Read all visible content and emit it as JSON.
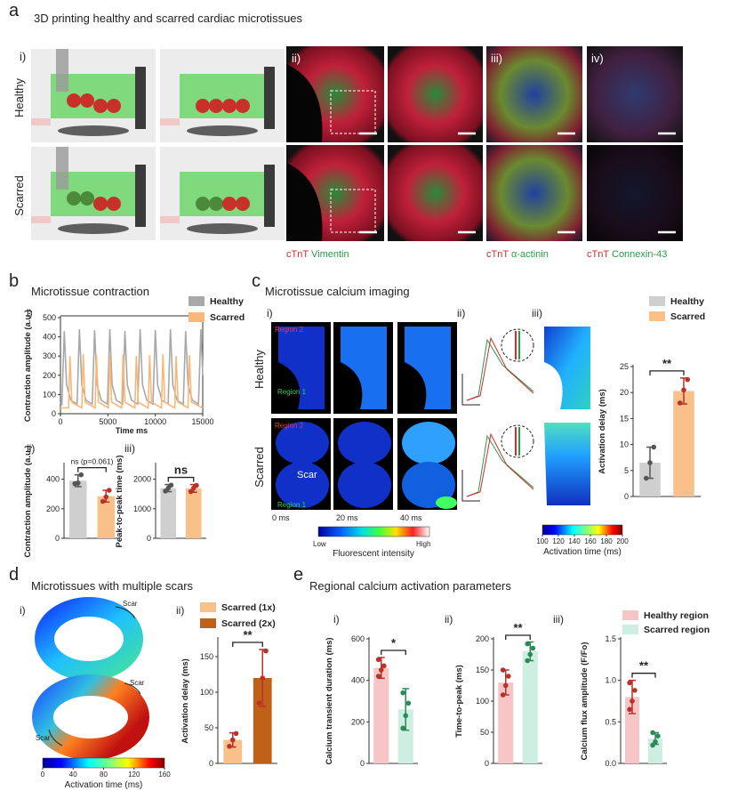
{
  "figure": {
    "panels": [
      {
        "label": "a",
        "title": "3D printing healthy and scarred cardiac microtissues",
        "sublabels": [
          "i)",
          "ii)",
          "iii)",
          "iv)"
        ],
        "rows": [
          "Healthy",
          "Scarred"
        ],
        "stains": [
          [
            "cTnT",
            "Vimentin"
          ],
          [
            "cTnT",
            "α-actinin"
          ],
          [
            "cTnT",
            "Connexin-43"
          ]
        ]
      },
      {
        "label": "b",
        "title": "Microtissue contraction",
        "sublabels": [
          "i)",
          "ii)",
          "iii)"
        ]
      },
      {
        "label": "c",
        "title": "Microtissue calcium imaging",
        "sublabels": [
          "i)",
          "ii)",
          "iii)"
        ],
        "rows": [
          "Healthy",
          "Scarred"
        ],
        "regions": [
          "Region 2",
          "Region 1"
        ],
        "scar": "Scar",
        "times": [
          "0 ms",
          "20 ms",
          "40 ms"
        ],
        "intensity_bar": {
          "low": "Low",
          "high": "High",
          "label": "Fluorescent intensity"
        },
        "activation_bar": {
          "ticks": [
            100,
            120,
            140,
            160,
            180,
            200
          ],
          "label": "Activation time (ms)"
        }
      },
      {
        "label": "d",
        "title": "Microtissues with multiple scars",
        "sublabels": [
          "i)",
          "ii)"
        ],
        "scar": "Scar",
        "activation_bar": {
          "ticks": [
            0,
            40,
            80,
            120,
            160
          ],
          "label": "Activation time (ms)"
        }
      },
      {
        "label": "e",
        "title": "Regional calcium activation parameters",
        "sublabels": [
          "i)",
          "ii)",
          "iii)"
        ]
      }
    ]
  },
  "chart_data": [
    {
      "type": "line",
      "xlabel": "Time ms",
      "ylabel": "Contraction amplitude (a.u.)",
      "xlim": [
        0,
        15000
      ],
      "xticks": [
        0,
        5000,
        10000,
        15000
      ],
      "ylim": [
        0,
        500
      ],
      "yticks": [
        0,
        100,
        200,
        300,
        400,
        500
      ],
      "series": [
        {
          "name": "Healthy",
          "color": "#a8a8a8",
          "x": [
            0,
            150,
            400,
            650,
            1100,
            1750,
            2000,
            2250,
            2700,
            3350,
            3600,
            3850,
            4300,
            4950,
            5200,
            5450,
            5900,
            6550,
            6800,
            7050,
            7500,
            8150,
            8400,
            8650,
            9100,
            9750,
            10000,
            10250,
            10700,
            11350,
            11600,
            11850,
            12300,
            12950,
            13200,
            13450,
            13900,
            14550,
            14800,
            15000
          ],
          "values": [
            60,
            50,
            430,
            150,
            70,
            50,
            440,
            150,
            70,
            50,
            435,
            150,
            70,
            50,
            440,
            150,
            70,
            50,
            430,
            150,
            70,
            50,
            440,
            150,
            70,
            50,
            435,
            150,
            70,
            50,
            440,
            150,
            70,
            50,
            430,
            150,
            70,
            50,
            440,
            200
          ]
        },
        {
          "name": "Scarred",
          "color": "#f9b878",
          "x": [
            0,
            850,
            1000,
            1200,
            2250,
            2400,
            2600,
            3650,
            3800,
            4000,
            5050,
            5200,
            5400,
            6450,
            6600,
            6800,
            7850,
            8000,
            8200,
            9250,
            9400,
            9600,
            10650,
            10800,
            11000,
            12050,
            12200,
            12400,
            13450,
            13600,
            13800,
            15000
          ],
          "values": [
            30,
            30,
            300,
            60,
            30,
            310,
            60,
            30,
            305,
            60,
            30,
            300,
            60,
            30,
            310,
            60,
            30,
            300,
            60,
            30,
            305,
            60,
            30,
            310,
            60,
            30,
            300,
            60,
            30,
            305,
            60,
            30
          ]
        }
      ]
    },
    {
      "type": "bar",
      "ylabel": "Contraction amplitude (a.u.)",
      "ylim": [
        0,
        500
      ],
      "yticks": [
        0,
        200,
        400
      ],
      "annotation": "ns (p=0.061)",
      "series": [
        {
          "color": "#cfcfcf",
          "point_color": "#555555",
          "values": [
            390
          ],
          "errors": [
            40
          ],
          "points": [
            370,
            375,
            430
          ]
        },
        {
          "color": "#f9c08a",
          "point_color": "#b8322a",
          "values": [
            285
          ],
          "errors": [
            40
          ],
          "points": [
            250,
            280,
            325
          ]
        }
      ]
    },
    {
      "type": "bar",
      "ylabel": "Peak-to-peak time (ms)",
      "ylim": [
        0,
        2500
      ],
      "yticks": [
        0,
        1000,
        2000
      ],
      "annotation": "ns",
      "series": [
        {
          "color": "#cfcfcf",
          "point_color": "#555555",
          "values": [
            1700
          ],
          "errors": [
            120
          ],
          "points": [
            1600,
            1700,
            1800
          ]
        },
        {
          "color": "#f9c08a",
          "point_color": "#b8322a",
          "values": [
            1690
          ],
          "errors": [
            130
          ],
          "points": [
            1580,
            1700,
            1790
          ]
        }
      ]
    },
    {
      "type": "bar",
      "ylabel": "Activation delay (ms)",
      "ylim": [
        0,
        25
      ],
      "yticks": [
        0,
        5,
        10,
        15,
        20,
        25
      ],
      "annotation": "**",
      "series": [
        {
          "name": "Healthy",
          "color": "#cfcfcf",
          "point_color": "#555555",
          "values": [
            6.5
          ],
          "errors": [
            3
          ],
          "points": [
            3.5,
            6.5,
            9.5
          ]
        },
        {
          "name": "Scarred",
          "color": "#f9c08a",
          "point_color": "#b8322a",
          "values": [
            20.3
          ],
          "errors": [
            2.5
          ],
          "points": [
            18,
            20.5,
            22.5
          ]
        }
      ]
    },
    {
      "type": "bar",
      "ylabel": "Activation delay (ms)",
      "ylim": [
        0,
        175
      ],
      "yticks": [
        0,
        50,
        100,
        150
      ],
      "annotation": "**",
      "series": [
        {
          "name": "Scarred (1x)",
          "color": "#f9c08a",
          "point_color": "#b8322a",
          "values": [
            33
          ],
          "errors": [
            10
          ],
          "points": [
            24,
            33,
            42
          ]
        },
        {
          "name": "Scarred (2x)",
          "color": "#c0611a",
          "point_color": "#b8322a",
          "values": [
            120
          ],
          "errors": [
            40
          ],
          "points": [
            85,
            120,
            158
          ]
        }
      ]
    },
    {
      "type": "bar",
      "ylabel": "Calcium transient duration (ms)",
      "ylim": [
        0,
        600
      ],
      "yticks": [
        0,
        200,
        400,
        600
      ],
      "annotation": "*",
      "series": [
        {
          "name": "Healthy region",
          "color": "#f7c5c5",
          "point_color": "#b8322a",
          "values": [
            460
          ],
          "errors": [
            50
          ],
          "points": [
            420,
            450,
            470,
            500
          ]
        },
        {
          "name": "Scarred region",
          "color": "#cdeee0",
          "point_color": "#2a8a5a",
          "values": [
            260
          ],
          "errors": [
            100
          ],
          "points": [
            170,
            230,
            290,
            340
          ]
        }
      ]
    },
    {
      "type": "bar",
      "ylabel": "Time-to-peak (ms)",
      "ylim": [
        0,
        200
      ],
      "yticks": [
        0,
        50,
        100,
        150,
        200
      ],
      "annotation": "**",
      "series": [
        {
          "color": "#f7c5c5",
          "point_color": "#b8322a",
          "values": [
            130
          ],
          "errors": [
            20
          ],
          "points": [
            110,
            125,
            140,
            150
          ]
        },
        {
          "color": "#cdeee0",
          "point_color": "#2a8a5a",
          "values": [
            180
          ],
          "errors": [
            15
          ],
          "points": [
            165,
            175,
            185,
            192
          ]
        }
      ]
    },
    {
      "type": "bar",
      "ylabel": "Calcium flux amplitude (F/Fo)",
      "ylim": [
        0,
        1.5
      ],
      "yticks": [
        {
          "value": 0,
          "label": "0.0"
        },
        {
          "value": 0.5,
          "label": "0.5"
        },
        {
          "value": 1,
          "label": "1.0"
        },
        {
          "value": 1.5,
          "label": "1.5"
        }
      ],
      "annotation": "**",
      "series": [
        {
          "color": "#f7c5c5",
          "point_color": "#b8322a",
          "values": [
            0.8
          ],
          "errors": [
            0.2
          ],
          "points": [
            0.65,
            0.75,
            0.88,
            0.97
          ]
        },
        {
          "color": "#cdeee0",
          "point_color": "#2a8a5a",
          "values": [
            0.3
          ],
          "errors": [
            0.07
          ],
          "points": [
            0.22,
            0.26,
            0.33,
            0.37
          ]
        }
      ]
    }
  ]
}
